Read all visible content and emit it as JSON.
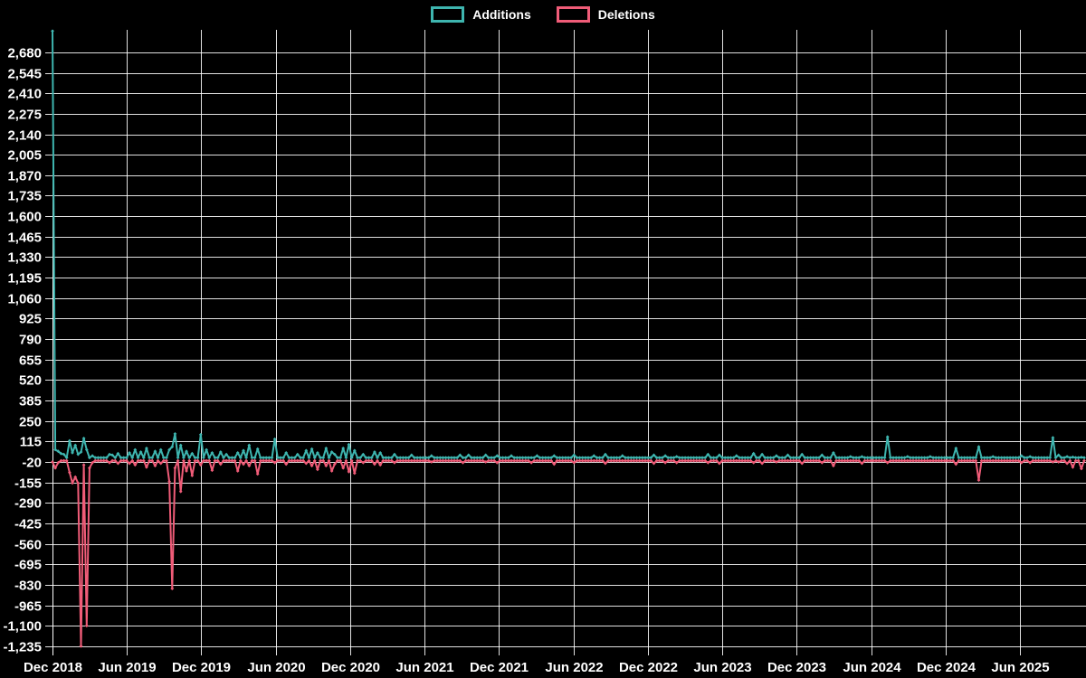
{
  "chart_data": {
    "type": "line",
    "title": "",
    "legend_position": "top",
    "background_color": "#000000",
    "grid_color": "#ffffff",
    "text_color": "#ffffff",
    "x_axis": {
      "tick_labels": [
        "Dec 2018",
        "Jun 2019",
        "Dec 2019",
        "Jun 2020",
        "Dec 2020",
        "Jun 2021",
        "Dec 2021",
        "Jun 2022",
        "Dec 2022",
        "Jun 2023",
        "Dec 2023",
        "Jun 2024",
        "Dec 2024",
        "Jun 2025"
      ],
      "unit": "weeks",
      "weeks_total": 362,
      "weeks_per_tick": 26
    },
    "y_axis": {
      "tick_labels": [
        2680,
        2545,
        2410,
        2275,
        2140,
        2005,
        1870,
        1735,
        1600,
        1465,
        1330,
        1195,
        1060,
        925,
        790,
        655,
        520,
        385,
        250,
        115,
        -20,
        -155,
        -290,
        -425,
        -560,
        -695,
        -830,
        -965,
        -1100,
        -1235
      ],
      "tick_step": 135,
      "range": [
        -1290,
        2830
      ]
    },
    "note": "events are [week_index_since_Dec_2018, value]; weeks not listed sit at the series baseline",
    "series": [
      {
        "name": "Additions",
        "color": "#3eb5af",
        "baseline": 8,
        "points_weekly_events": [
          [
            0,
            2820
          ],
          [
            1,
            60
          ],
          [
            2,
            50
          ],
          [
            3,
            35
          ],
          [
            4,
            30
          ],
          [
            6,
            120
          ],
          [
            7,
            40
          ],
          [
            8,
            90
          ],
          [
            9,
            30
          ],
          [
            10,
            45
          ],
          [
            11,
            135
          ],
          [
            12,
            60
          ],
          [
            14,
            20
          ],
          [
            20,
            30
          ],
          [
            21,
            25
          ],
          [
            23,
            35
          ],
          [
            27,
            40
          ],
          [
            29,
            60
          ],
          [
            31,
            45
          ],
          [
            33,
            70
          ],
          [
            36,
            50
          ],
          [
            38,
            60
          ],
          [
            41,
            60
          ],
          [
            42,
            80
          ],
          [
            43,
            165
          ],
          [
            45,
            90
          ],
          [
            47,
            50
          ],
          [
            49,
            35
          ],
          [
            52,
            160
          ],
          [
            54,
            60
          ],
          [
            56,
            40
          ],
          [
            59,
            45
          ],
          [
            61,
            30
          ],
          [
            65,
            40
          ],
          [
            67,
            55
          ],
          [
            69,
            90
          ],
          [
            72,
            65
          ],
          [
            78,
            130
          ],
          [
            82,
            40
          ],
          [
            86,
            30
          ],
          [
            89,
            55
          ],
          [
            91,
            65
          ],
          [
            93,
            40
          ],
          [
            96,
            70
          ],
          [
            98,
            45
          ],
          [
            99,
            30
          ],
          [
            102,
            70
          ],
          [
            104,
            95
          ],
          [
            106,
            55
          ],
          [
            109,
            30
          ],
          [
            113,
            45
          ],
          [
            115,
            40
          ],
          [
            120,
            30
          ],
          [
            126,
            25
          ],
          [
            133,
            20
          ],
          [
            143,
            25
          ],
          [
            146,
            25
          ],
          [
            152,
            25
          ],
          [
            156,
            20
          ],
          [
            161,
            20
          ],
          [
            170,
            20
          ],
          [
            176,
            20
          ],
          [
            183,
            25
          ],
          [
            190,
            20
          ],
          [
            194,
            30
          ],
          [
            200,
            20
          ],
          [
            211,
            25
          ],
          [
            215,
            20
          ],
          [
            219,
            15
          ],
          [
            230,
            30
          ],
          [
            234,
            25
          ],
          [
            240,
            20
          ],
          [
            246,
            35
          ],
          [
            249,
            30
          ],
          [
            254,
            20
          ],
          [
            258,
            25
          ],
          [
            263,
            30
          ],
          [
            270,
            25
          ],
          [
            274,
            40
          ],
          [
            280,
            15
          ],
          [
            284,
            15
          ],
          [
            293,
            145
          ],
          [
            300,
            15
          ],
          [
            308,
            15
          ],
          [
            317,
            70
          ],
          [
            325,
            80
          ],
          [
            330,
            15
          ],
          [
            340,
            20
          ],
          [
            343,
            15
          ],
          [
            351,
            140
          ],
          [
            353,
            25
          ],
          [
            356,
            15
          ],
          [
            358,
            12
          ],
          [
            361,
            10
          ]
        ]
      },
      {
        "name": "Deletions",
        "color": "#f05c78",
        "baseline": -12,
        "points_weekly_events": [
          [
            0,
            -20
          ],
          [
            1,
            -60
          ],
          [
            2,
            -25
          ],
          [
            6,
            -90
          ],
          [
            7,
            -160
          ],
          [
            8,
            -120
          ],
          [
            9,
            -160
          ],
          [
            10,
            -1235
          ],
          [
            11,
            -40
          ],
          [
            12,
            -1100
          ],
          [
            13,
            -60
          ],
          [
            14,
            -25
          ],
          [
            20,
            -25
          ],
          [
            23,
            -30
          ],
          [
            27,
            -30
          ],
          [
            29,
            -40
          ],
          [
            33,
            -55
          ],
          [
            36,
            -45
          ],
          [
            38,
            -30
          ],
          [
            41,
            -150
          ],
          [
            42,
            -855
          ],
          [
            43,
            -60
          ],
          [
            45,
            -215
          ],
          [
            47,
            -80
          ],
          [
            49,
            -110
          ],
          [
            52,
            -40
          ],
          [
            56,
            -75
          ],
          [
            59,
            -35
          ],
          [
            65,
            -80
          ],
          [
            67,
            -35
          ],
          [
            69,
            -45
          ],
          [
            72,
            -100
          ],
          [
            78,
            -25
          ],
          [
            82,
            -35
          ],
          [
            89,
            -30
          ],
          [
            91,
            -45
          ],
          [
            93,
            -70
          ],
          [
            96,
            -45
          ],
          [
            98,
            -80
          ],
          [
            99,
            -35
          ],
          [
            102,
            -60
          ],
          [
            104,
            -85
          ],
          [
            106,
            -95
          ],
          [
            109,
            -25
          ],
          [
            113,
            -35
          ],
          [
            115,
            -40
          ],
          [
            120,
            -25
          ],
          [
            133,
            -20
          ],
          [
            144,
            -25
          ],
          [
            152,
            -20
          ],
          [
            156,
            -25
          ],
          [
            168,
            -25
          ],
          [
            176,
            -35
          ],
          [
            183,
            -25
          ],
          [
            194,
            -30
          ],
          [
            211,
            -30
          ],
          [
            215,
            -25
          ],
          [
            219,
            -25
          ],
          [
            230,
            -25
          ],
          [
            234,
            -30
          ],
          [
            246,
            -25
          ],
          [
            249,
            -30
          ],
          [
            254,
            -20
          ],
          [
            263,
            -30
          ],
          [
            270,
            -25
          ],
          [
            274,
            -45
          ],
          [
            284,
            -30
          ],
          [
            293,
            -25
          ],
          [
            317,
            -35
          ],
          [
            325,
            -140
          ],
          [
            340,
            -25
          ],
          [
            343,
            -25
          ],
          [
            351,
            -20
          ],
          [
            353,
            -20
          ],
          [
            356,
            -30
          ],
          [
            358,
            -55
          ],
          [
            361,
            -65
          ]
        ]
      }
    ]
  },
  "legend": {
    "additions_label": "Additions",
    "deletions_label": "Deletions"
  }
}
